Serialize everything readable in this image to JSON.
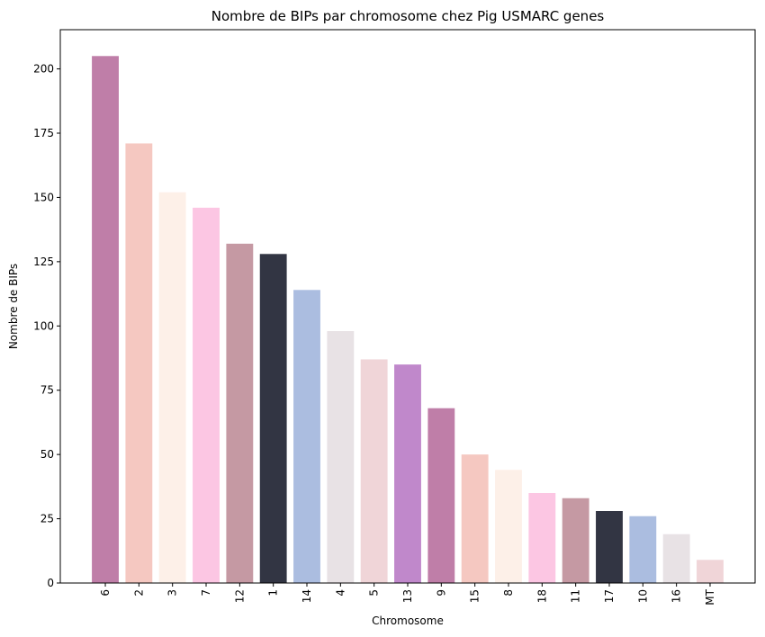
{
  "chart_data": {
    "type": "bar",
    "title": "Nombre de BIPs par chromosome chez Pig USMARC genes",
    "xlabel": "Chromosome",
    "ylabel": "Nombre de BIPs",
    "categories": [
      "6",
      "2",
      "3",
      "7",
      "12",
      "1",
      "14",
      "4",
      "5",
      "13",
      "9",
      "15",
      "8",
      "18",
      "11",
      "17",
      "10",
      "16",
      "MT"
    ],
    "values": [
      205,
      171,
      152,
      146,
      132,
      128,
      114,
      98,
      87,
      85,
      68,
      50,
      44,
      35,
      33,
      28,
      26,
      19,
      9
    ],
    "colors": [
      "#bf7ea8",
      "#f5c8c1",
      "#fdf0e8",
      "#fcc6e3",
      "#c599a3",
      "#323543",
      "#abbde0",
      "#e8e2e5",
      "#f0d5d8",
      "#c088cb",
      "#bf7ea8",
      "#f5c8c1",
      "#fdf0e8",
      "#fcc6e3",
      "#c599a3",
      "#323543",
      "#abbde0",
      "#e8e2e5",
      "#f0d5d8"
    ],
    "ylim": [
      0,
      215.25
    ],
    "yticks": [
      0,
      25,
      50,
      75,
      100,
      125,
      150,
      175,
      200
    ],
    "ytick_labels": [
      "0",
      "25",
      "50",
      "75",
      "100",
      "125",
      "150",
      "175",
      "200"
    ],
    "xtick_rotation": 90,
    "grid": false,
    "legend": "none"
  }
}
